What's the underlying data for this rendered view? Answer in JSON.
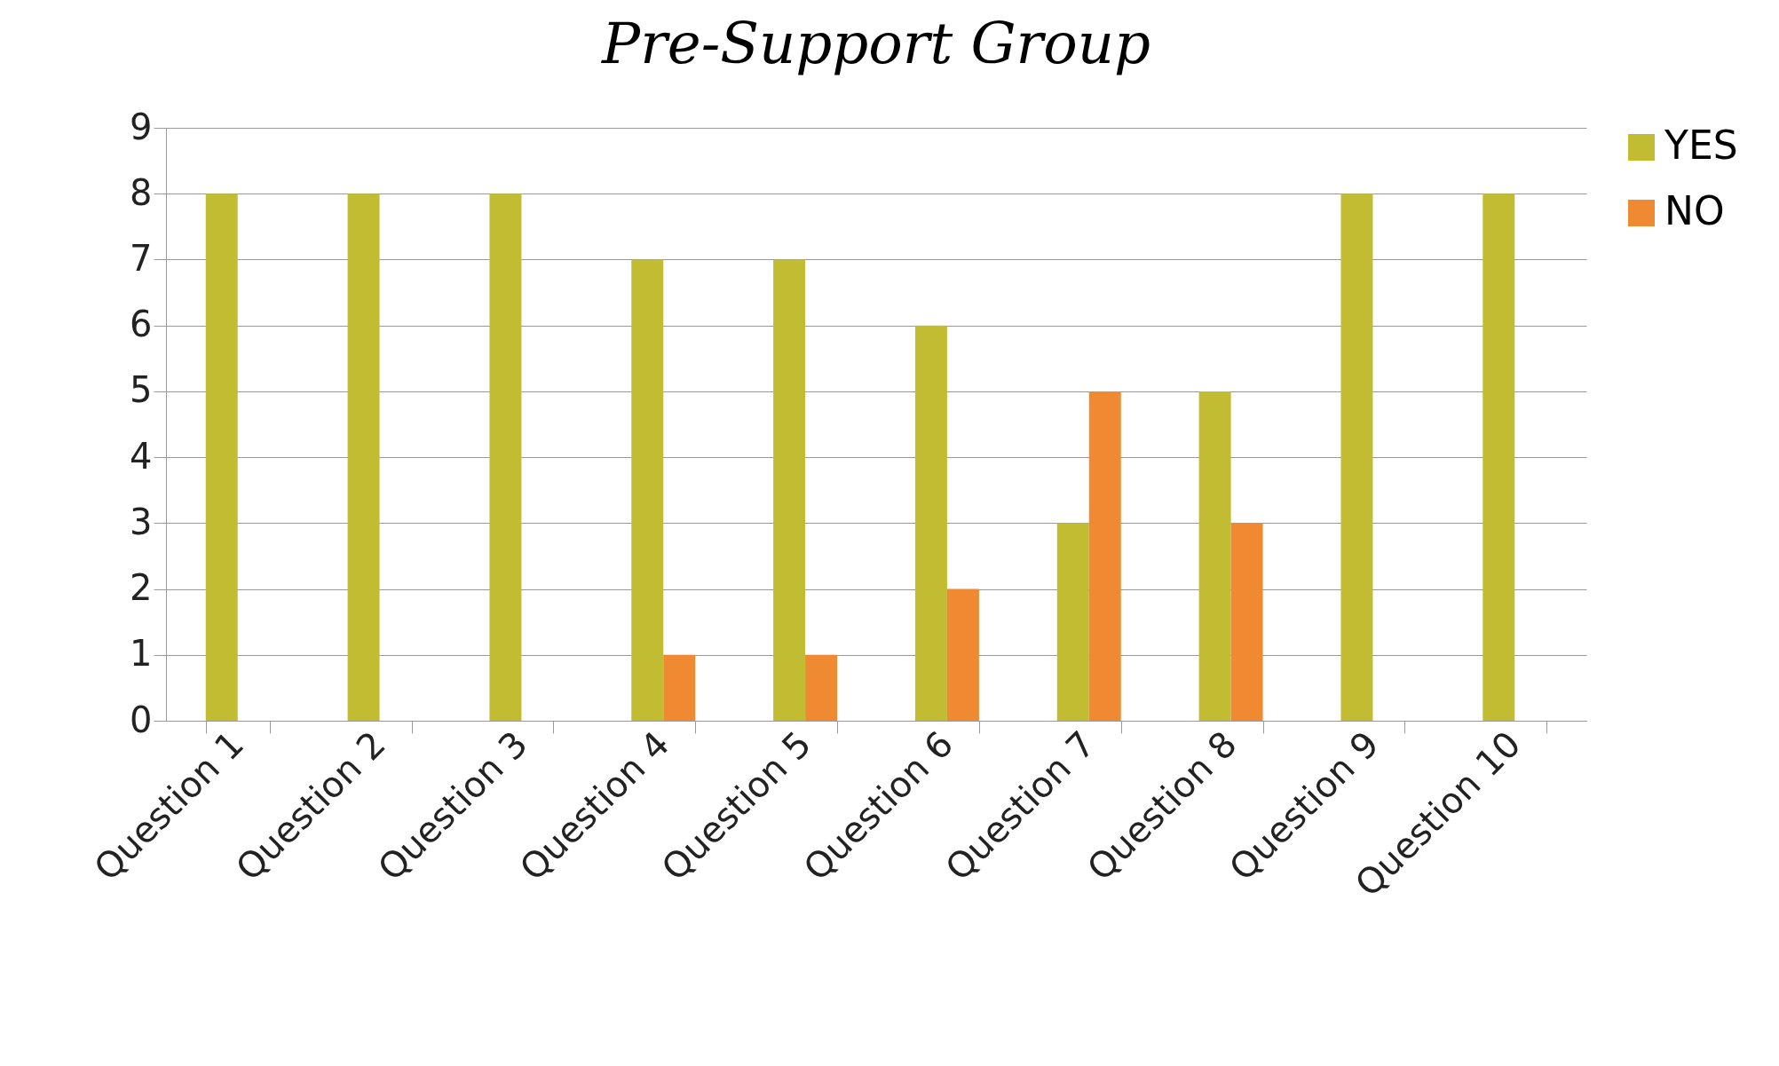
{
  "chart_data": {
    "type": "bar",
    "title": "Pre-Support Group",
    "categories": [
      "Question 1",
      "Question 2",
      "Question 3",
      "Question 4",
      "Question 5",
      "Question 6",
      "Question 7",
      "Question 8",
      "Question 9",
      "Question 10"
    ],
    "series": [
      {
        "name": "YES",
        "color": "#c1bc32",
        "values": [
          8,
          8,
          8,
          7,
          7,
          6,
          3,
          5,
          8,
          8
        ]
      },
      {
        "name": "NO",
        "color": "#f08a32",
        "values": [
          0,
          0,
          0,
          1,
          1,
          2,
          5,
          3,
          0,
          0
        ]
      }
    ],
    "ylim": [
      0,
      9
    ],
    "yticks": [
      0,
      1,
      2,
      3,
      4,
      5,
      6,
      7,
      8,
      9
    ],
    "grid": "y",
    "legend": "right"
  }
}
